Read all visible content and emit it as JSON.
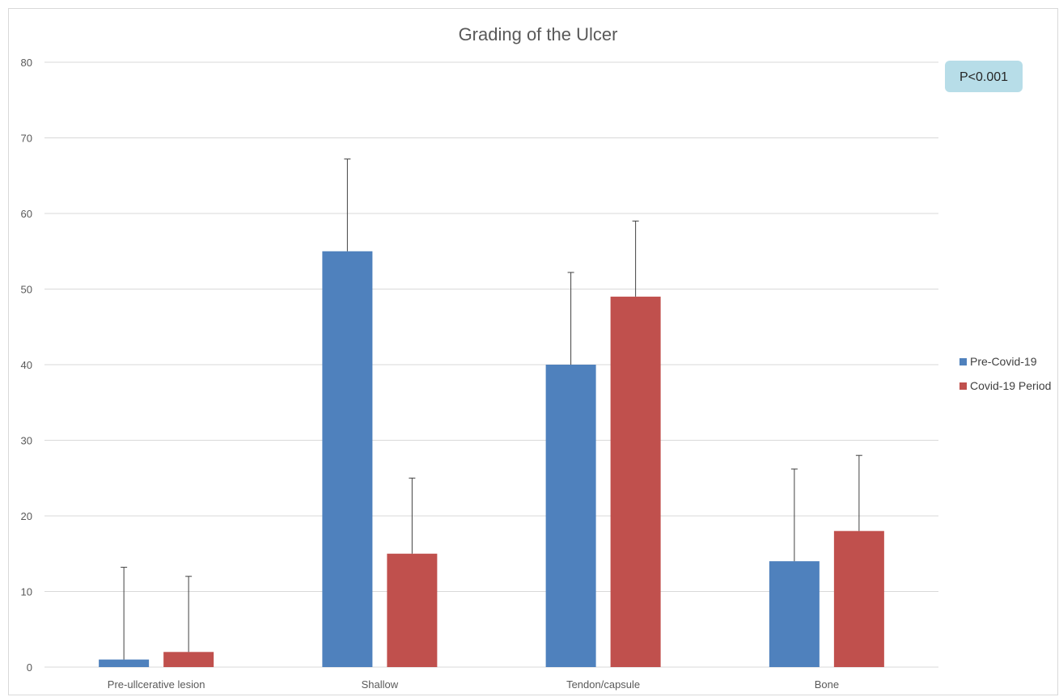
{
  "chart_data": {
    "type": "bar",
    "title": "Grading of the Ulcer",
    "xlabel": "",
    "ylabel": "",
    "categories": [
      "Pre-ullcerative lesion",
      "Shallow",
      "Tendon/capsule",
      "Bone"
    ],
    "series": [
      {
        "name": "Pre-Covid-19",
        "color": "#4f81bd",
        "values": [
          1,
          55,
          40,
          14
        ],
        "error_upper": [
          13.2,
          67.2,
          52.2,
          26.2
        ]
      },
      {
        "name": "Covid-19 Period",
        "color": "#c0504d",
        "values": [
          2,
          15,
          49,
          18
        ],
        "error_upper": [
          12,
          25,
          59,
          28
        ]
      }
    ],
    "ylim": [
      0,
      80
    ],
    "yticks": [
      0,
      10,
      20,
      30,
      40,
      50,
      60,
      70,
      80
    ],
    "grid": true,
    "legend_position": "right",
    "annotation": "P<0.001"
  },
  "colors": {
    "grid": "#d9d9d9",
    "annotation_bg": "#b7dde8"
  }
}
